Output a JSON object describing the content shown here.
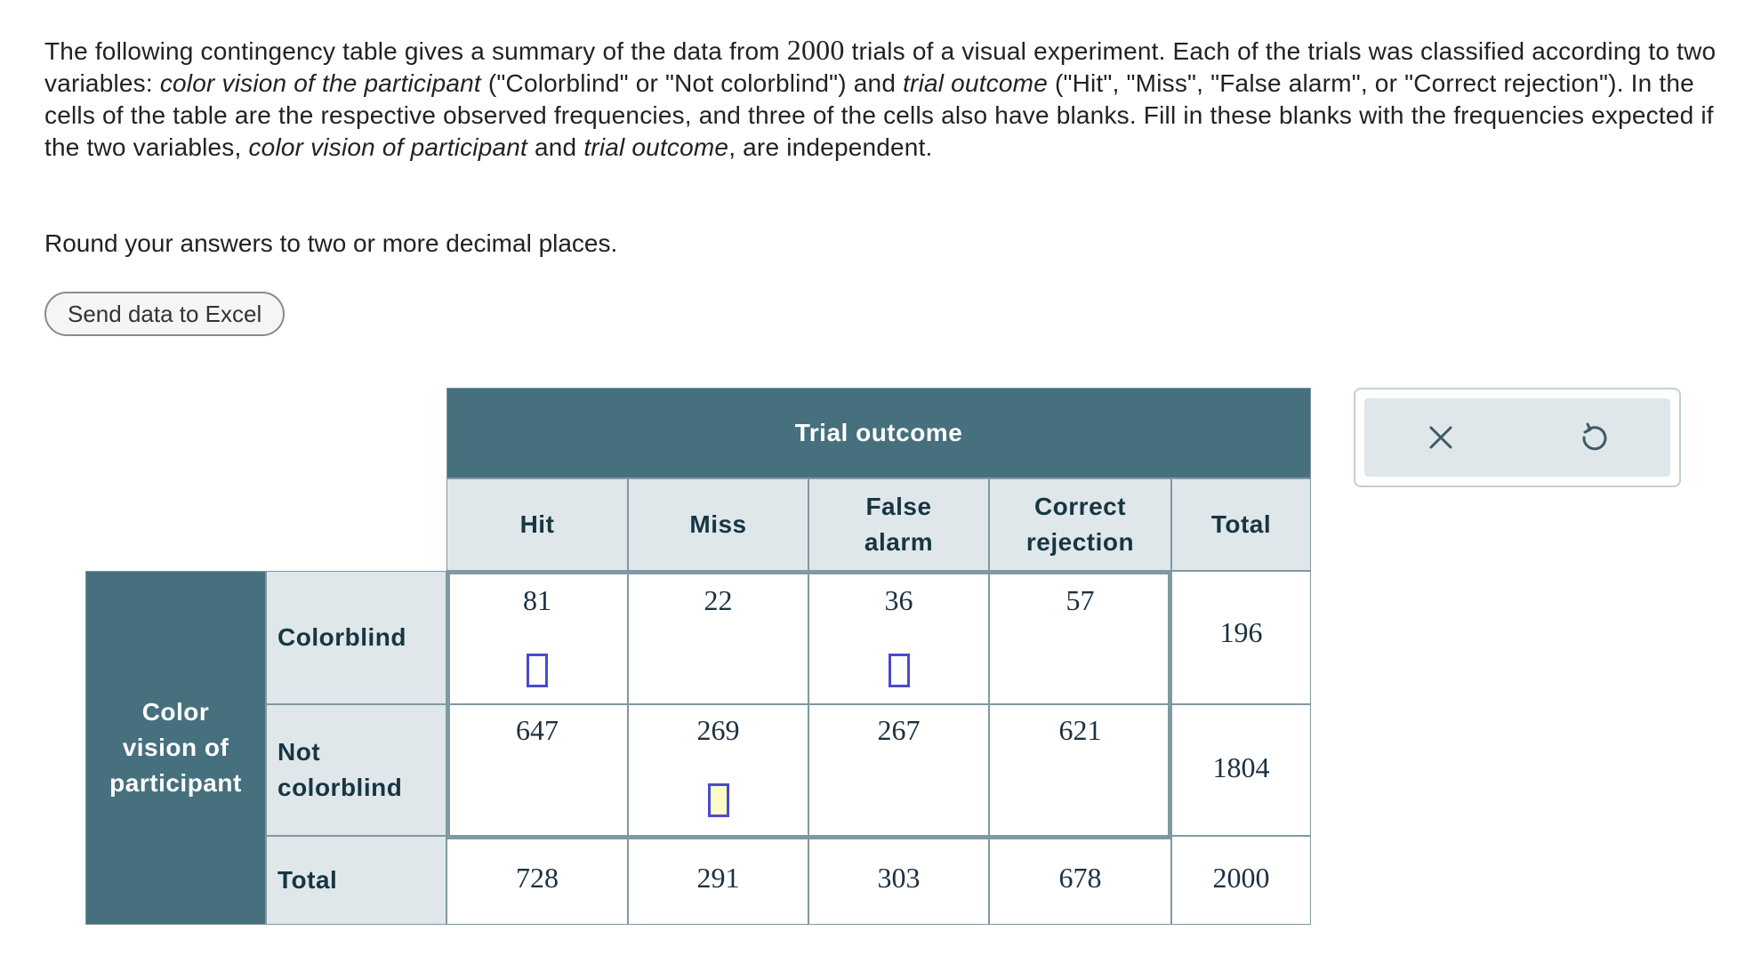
{
  "prompt": {
    "s1": "The following contingency table gives a summary of the data from ",
    "trials": "2000",
    "s2": " trials of a visual experiment. Each of the trials was classified according to two variables: ",
    "var1": "color vision of the participant",
    "s3": " (\"Colorblind\" or \"Not colorblind\") and ",
    "var2": "trial outcome",
    "s4": " (\"Hit\", \"Miss\", \"False alarm\", or \"Correct rejection\"). In the cells of the table are the respective observed frequencies, and three of the cells also have blanks. Fill in these blanks with the frequencies expected if the two variables, ",
    "var3": "color vision of participant",
    "s5": " and ",
    "var4": "trial outcome",
    "s6": ", are independent.",
    "round_note": "Round your answers to two or more decimal places."
  },
  "excel_button": "Send data to Excel",
  "table": {
    "col_group_header": "Trial outcome",
    "row_group_header": [
      "Color",
      "vision of",
      "participant"
    ],
    "columns": {
      "hit": "Hit",
      "miss": "Miss",
      "false_alarm": [
        "False",
        "alarm"
      ],
      "correct_rejection": [
        "Correct",
        "rejection"
      ],
      "total": "Total"
    },
    "rows": {
      "colorblind": {
        "label": "Colorblind",
        "hit": "81",
        "miss": "22",
        "false_alarm": "36",
        "correct_rejection": "57",
        "total": "196"
      },
      "not_colorblind": {
        "label": [
          "Not",
          "colorblind"
        ],
        "hit": "647",
        "miss": "269",
        "false_alarm": "267",
        "correct_rejection": "621",
        "total": "1804"
      },
      "total": {
        "label": "Total",
        "hit": "728",
        "miss": "291",
        "false_alarm": "303",
        "correct_rejection": "678",
        "total": "2000"
      }
    },
    "blanks": {
      "colorblind_hit": "",
      "colorblind_false_alarm": "",
      "not_colorblind_miss": ""
    }
  },
  "colors": {
    "header_dark": "#46707d",
    "header_light": "#e0e7ea",
    "blank_border": "#4a4ad0",
    "blank_active": "#fbfbc8"
  },
  "icons": [
    "close-icon",
    "undo-icon"
  ]
}
